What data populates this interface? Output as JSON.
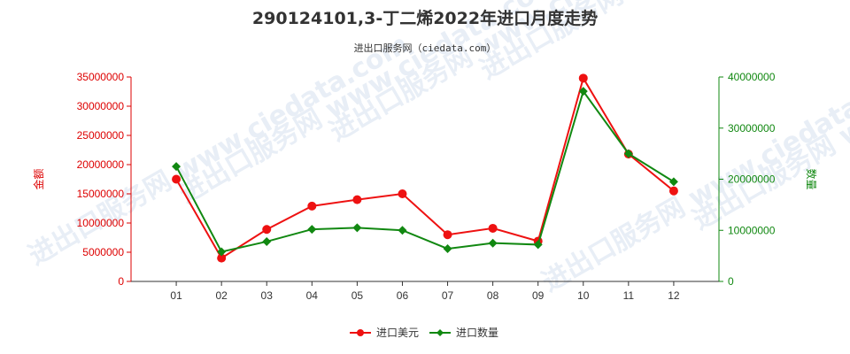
{
  "chart_data": {
    "type": "line",
    "title": "290124101,3-丁二烯2022年进口月度走势",
    "subtitle": "进出口服务网（ciedata.com）",
    "watermark": "进出口服务网 www.ciedata.com",
    "categories": [
      "01",
      "02",
      "03",
      "04",
      "05",
      "06",
      "07",
      "08",
      "09",
      "10",
      "11",
      "12"
    ],
    "y_left": {
      "label": "金额",
      "lim": [
        0,
        35000000
      ],
      "ticks": [
        0,
        5000000,
        10000000,
        15000000,
        20000000,
        25000000,
        30000000,
        35000000
      ],
      "tick_labels": [
        "0",
        "5000000",
        "10000000",
        "15000000",
        "20000000",
        "25000000",
        "30000000",
        "35000000"
      ],
      "color": "#dd0000"
    },
    "y_right": {
      "label": "数量",
      "lim": [
        0,
        40000000
      ],
      "ticks": [
        0,
        10000000,
        20000000,
        30000000,
        40000000
      ],
      "tick_labels": [
        "0",
        "10000000",
        "20000000",
        "30000000",
        "40000000"
      ],
      "color": "#118811"
    },
    "series": [
      {
        "name": "进口美元",
        "axis": "left",
        "color": "#ee1111",
        "marker": "circle",
        "values": [
          17500000,
          4000000,
          8900000,
          12900000,
          14000000,
          15000000,
          8000000,
          9100000,
          6900000,
          34800000,
          21800000,
          15500000
        ]
      },
      {
        "name": "进口数量",
        "axis": "right",
        "color": "#118811",
        "marker": "diamond",
        "values": [
          22500000,
          5800000,
          7800000,
          10200000,
          10500000,
          10000000,
          6400000,
          7500000,
          7200000,
          37200000,
          25000000,
          19500000
        ]
      }
    ],
    "legend_position": "bottom-center",
    "grid": false
  }
}
